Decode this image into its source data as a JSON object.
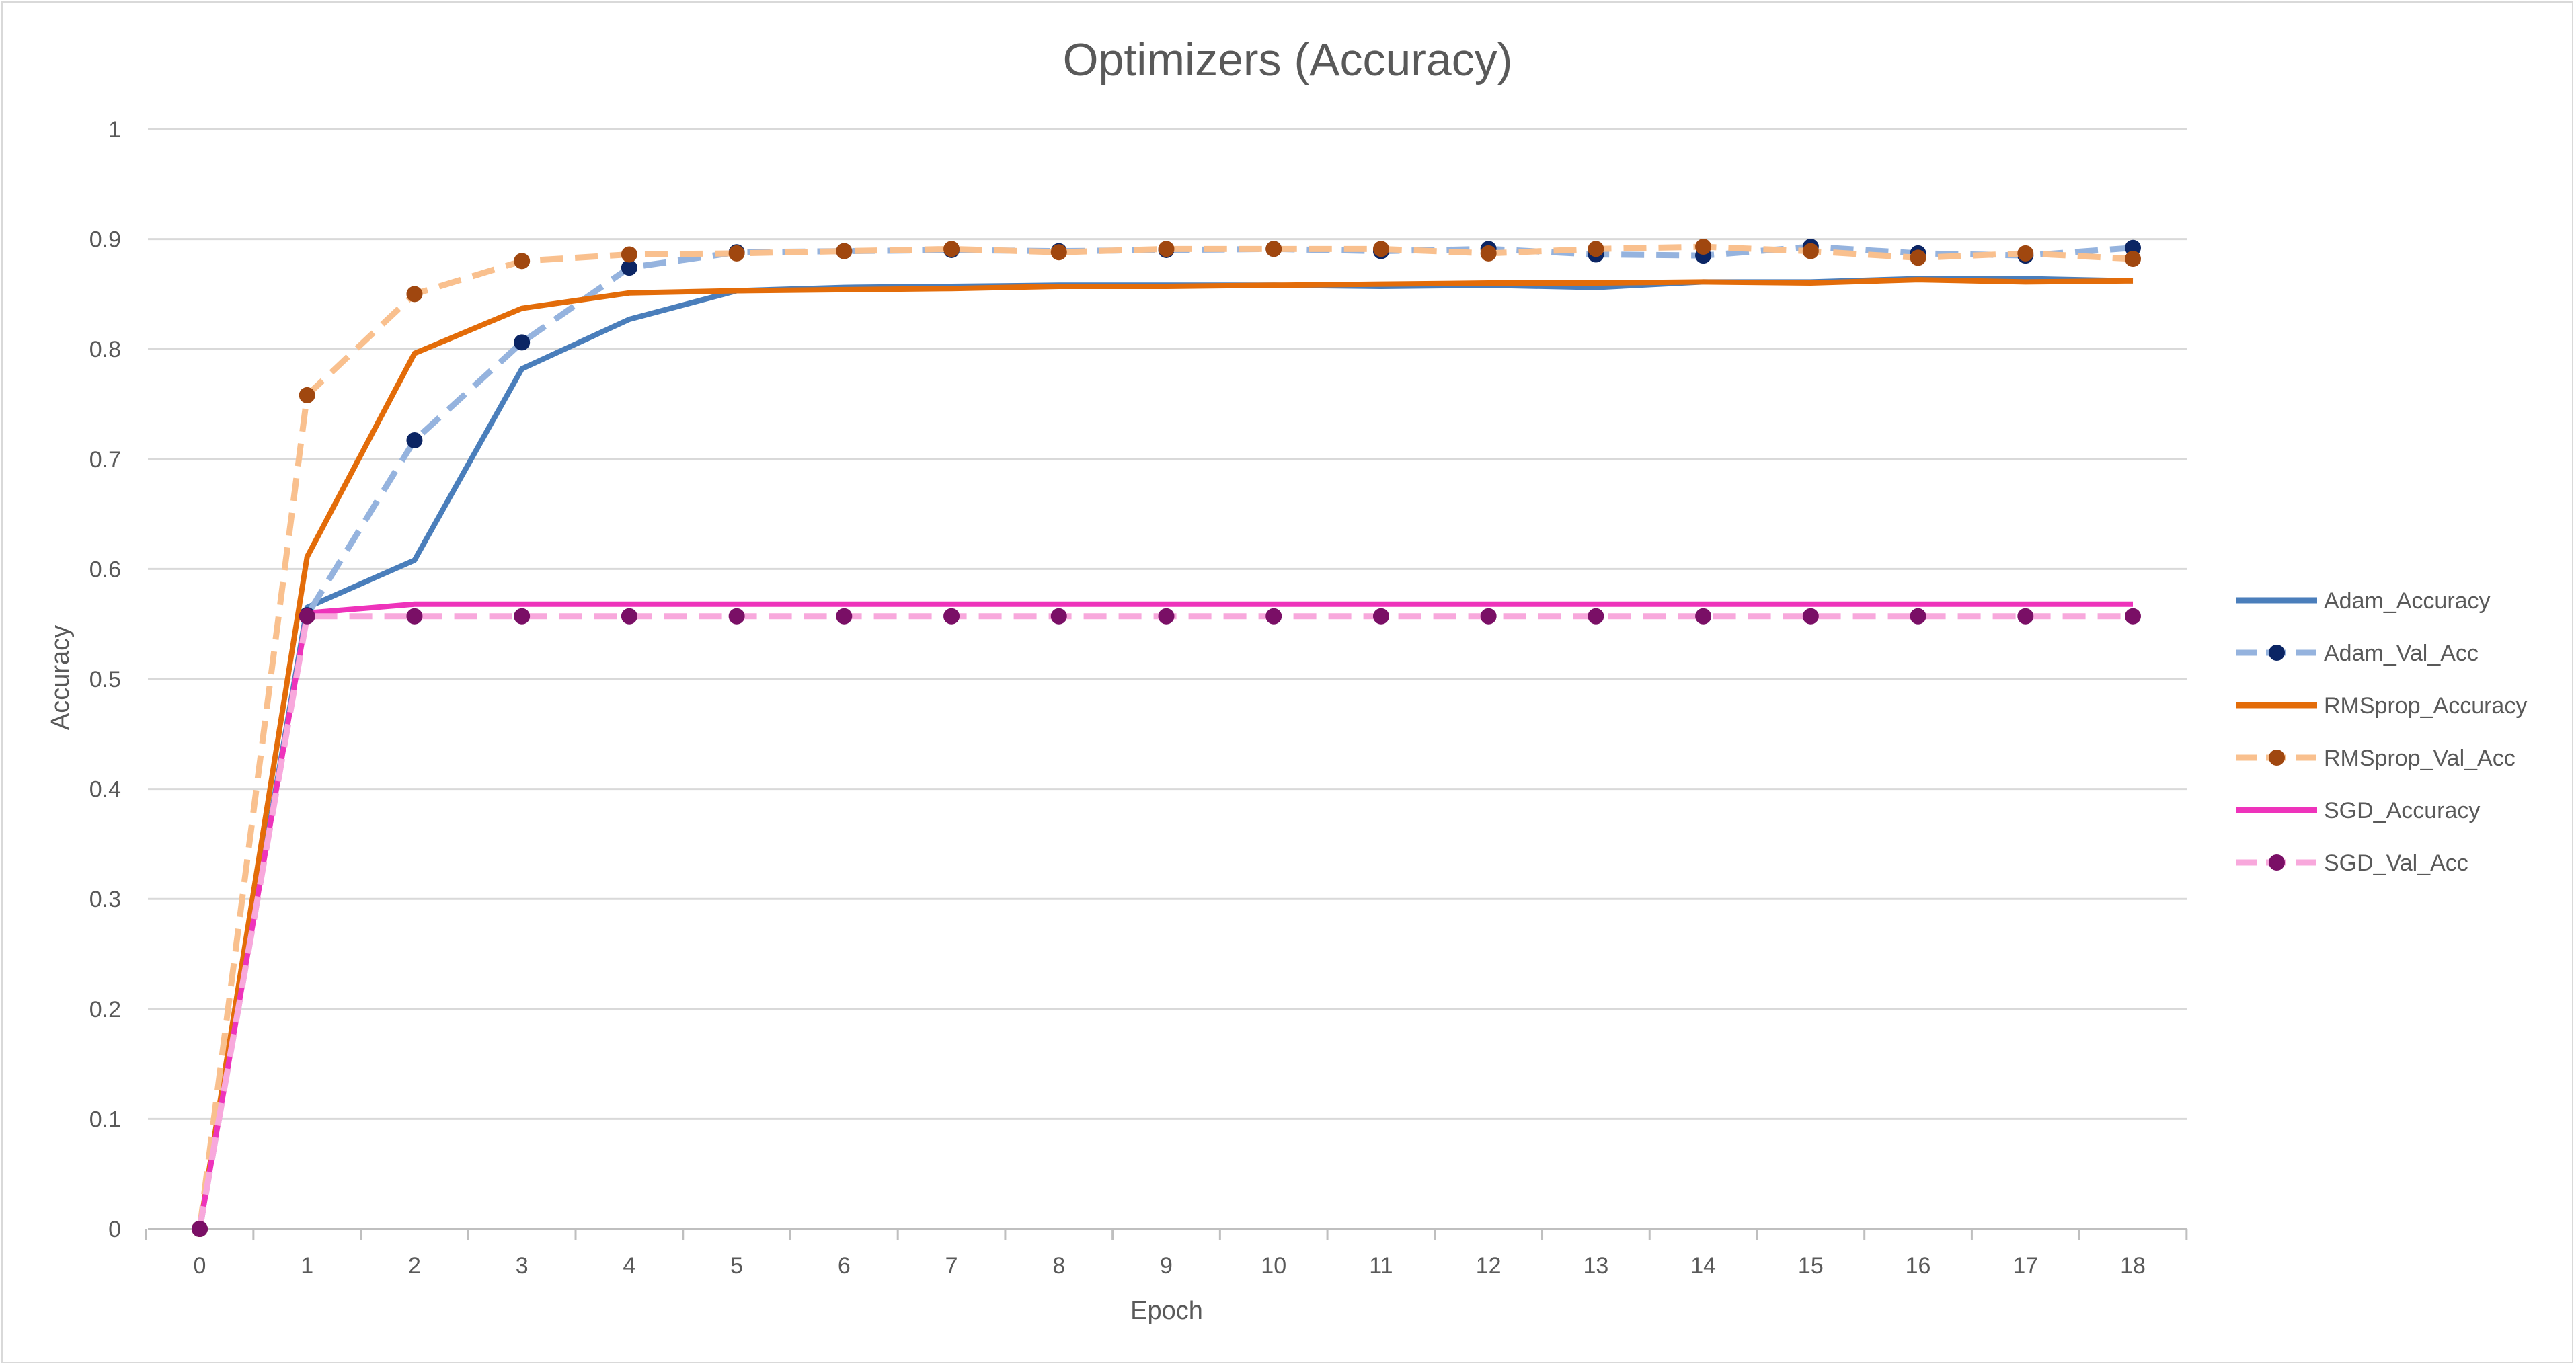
{
  "chart_data": {
    "type": "line",
    "title": "Optimizers (Accuracy)",
    "xlabel": "Epoch",
    "ylabel": "Accuracy",
    "ylim": [
      0,
      1
    ],
    "y_ticks": [
      "0",
      "0.1",
      "0.2",
      "0.3",
      "0.4",
      "0.5",
      "0.6",
      "0.7",
      "0.8",
      "0.9",
      "1"
    ],
    "categories": [
      "0",
      "1",
      "2",
      "3",
      "4",
      "5",
      "6",
      "7",
      "8",
      "9",
      "10",
      "11",
      "12",
      "13",
      "14",
      "15",
      "16",
      "17",
      "18"
    ],
    "grid": "horizontal",
    "legend_position": "right",
    "series": [
      {
        "name": "Adam_Accuracy",
        "color": "#4a7ebb",
        "dashed": false,
        "markers": false,
        "values": [
          0,
          0.565,
          0.608,
          0.782,
          0.827,
          0.853,
          0.856,
          0.857,
          0.858,
          0.858,
          0.858,
          0.857,
          0.858,
          0.856,
          0.861,
          0.861,
          0.864,
          0.864,
          0.862
        ]
      },
      {
        "name": "Adam_Val_Acc",
        "color": "#95b3de",
        "marker_color": "#0b2564",
        "dashed": true,
        "markers": true,
        "values": [
          0,
          0.558,
          0.717,
          0.806,
          0.874,
          0.888,
          0.889,
          0.89,
          0.889,
          0.89,
          0.891,
          0.889,
          0.891,
          0.886,
          0.885,
          0.893,
          0.887,
          0.885,
          0.892
        ]
      },
      {
        "name": "RMSprop_Accuracy",
        "color": "#e36c09",
        "dashed": false,
        "markers": false,
        "values": [
          0,
          0.611,
          0.796,
          0.837,
          0.851,
          0.853,
          0.854,
          0.855,
          0.857,
          0.857,
          0.858,
          0.859,
          0.86,
          0.86,
          0.861,
          0.86,
          0.863,
          0.861,
          0.862
        ]
      },
      {
        "name": "RMSprop_Val_Acc",
        "color": "#f9c08e",
        "marker_color": "#a0470f",
        "dashed": true,
        "markers": true,
        "values": [
          0,
          0.758,
          0.85,
          0.88,
          0.886,
          0.887,
          0.889,
          0.891,
          0.888,
          0.891,
          0.891,
          0.891,
          0.887,
          0.891,
          0.893,
          0.889,
          0.883,
          0.887,
          0.882
        ]
      },
      {
        "name": "SGD_Accuracy",
        "color": "#ee33bb",
        "dashed": false,
        "markers": false,
        "values": [
          0,
          0.56,
          0.568,
          0.568,
          0.568,
          0.568,
          0.568,
          0.568,
          0.568,
          0.568,
          0.568,
          0.568,
          0.568,
          0.568,
          0.568,
          0.568,
          0.568,
          0.568,
          0.568
        ]
      },
      {
        "name": "SGD_Val_Acc",
        "color": "#f8a8dc",
        "marker_color": "#7a0f66",
        "dashed": true,
        "markers": true,
        "values": [
          0,
          0.557,
          0.557,
          0.557,
          0.557,
          0.557,
          0.557,
          0.557,
          0.557,
          0.557,
          0.557,
          0.557,
          0.557,
          0.557,
          0.557,
          0.557,
          0.557,
          0.557,
          0.557
        ]
      }
    ]
  }
}
